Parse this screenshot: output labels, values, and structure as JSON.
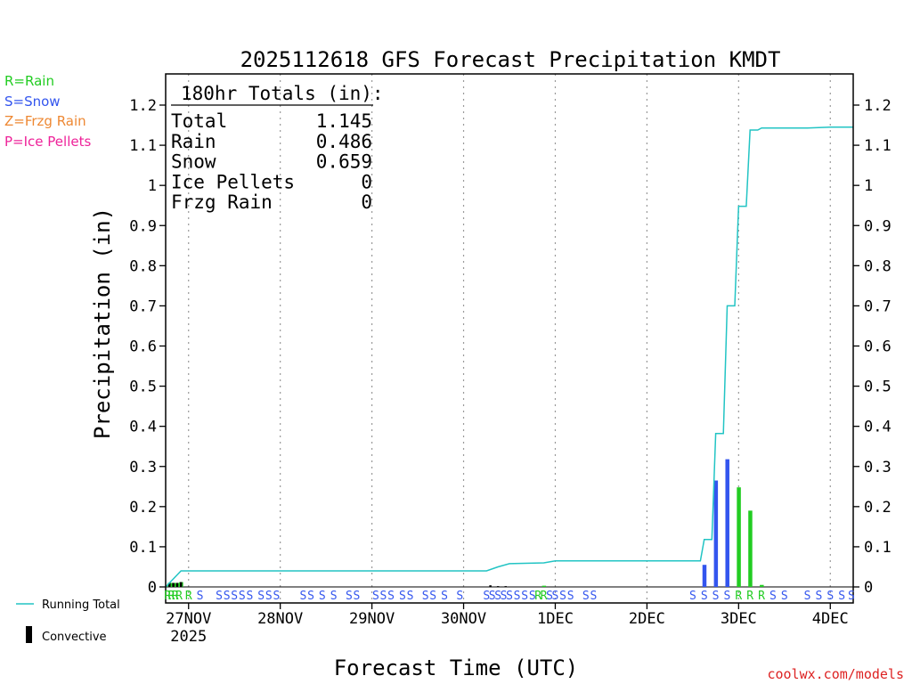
{
  "chart_data": {
    "type": "bar",
    "title": "2025112618 GFS Forecast Precipitation KMDT",
    "xlabel": "Forecast Time (UTC)",
    "ylabel": "Precipitation (in)",
    "ylim": [
      0,
      1.25
    ],
    "y_ticks": [
      0,
      0.1,
      0.2,
      0.3,
      0.4,
      0.5,
      0.6,
      0.7,
      0.8,
      0.9,
      1,
      1.1,
      1.2
    ],
    "y_tick_labels": [
      "0",
      "0.1",
      "0.2",
      "0.3",
      "0.4",
      "0.5",
      "0.6",
      "0.7",
      "0.8",
      "0.9",
      "1",
      "1.1",
      "1.2"
    ],
    "x_unit": "forecast hour",
    "xlim": [
      0,
      180
    ],
    "x_ticks": [
      {
        "hour": 6,
        "label": "27NOV",
        "sublabel": "2025"
      },
      {
        "hour": 30,
        "label": "28NOV"
      },
      {
        "hour": 54,
        "label": "29NOV"
      },
      {
        "hour": 78,
        "label": "30NOV"
      },
      {
        "hour": 102,
        "label": "1DEC"
      },
      {
        "hour": 126,
        "label": "2DEC"
      },
      {
        "hour": 150,
        "label": "3DEC"
      },
      {
        "hour": 174,
        "label": "4DEC"
      }
    ],
    "grid": true,
    "type_legend": [
      {
        "code": "R",
        "label": "R=Rain",
        "color": "#22cc22"
      },
      {
        "code": "S",
        "label": "S=Snow",
        "color": "#3355ee"
      },
      {
        "code": "Z",
        "label": "Z=Frzg Rain",
        "color": "#ee8833"
      },
      {
        "code": "P",
        "label": "P=Ice Pellets",
        "color": "#ee2299"
      }
    ],
    "series_legend": [
      {
        "label": "Running Total",
        "color": "#22c4c4"
      },
      {
        "label": "Convective",
        "color": "#000000"
      }
    ],
    "totals_box": {
      "header": "180hr Totals (in):",
      "rows": [
        {
          "label": "Total",
          "value": "1.145"
        },
        {
          "label": "Rain",
          "value": "0.486"
        },
        {
          "label": "Snow",
          "value": "0.659"
        },
        {
          "label": "Ice Pellets",
          "value": "0"
        },
        {
          "label": "Frzg Rain",
          "value": "0"
        }
      ]
    },
    "bars": [
      {
        "hour": 1,
        "value": 0.01,
        "type": "R"
      },
      {
        "hour": 2,
        "value": 0.01,
        "type": "R"
      },
      {
        "hour": 3,
        "value": 0.01,
        "type": "R"
      },
      {
        "hour": 4,
        "value": 0.012,
        "type": "R"
      },
      {
        "hour": 99,
        "value": 0.003,
        "type": "R"
      },
      {
        "hour": 141,
        "value": 0.055,
        "type": "S"
      },
      {
        "hour": 144,
        "value": 0.265,
        "type": "S"
      },
      {
        "hour": 147,
        "value": 0.318,
        "type": "S"
      },
      {
        "hour": 150,
        "value": 0.248,
        "type": "R"
      },
      {
        "hour": 153,
        "value": 0.19,
        "type": "R"
      },
      {
        "hour": 156,
        "value": 0.005,
        "type": "R"
      }
    ],
    "convective": [
      {
        "hour": 1,
        "value": 0.01
      },
      {
        "hour": 2,
        "value": 0.01
      },
      {
        "hour": 3,
        "value": 0.01
      },
      {
        "hour": 4,
        "value": 0.012
      },
      {
        "hour": 85,
        "value": 0.004
      },
      {
        "hour": 87,
        "value": 0.002
      },
      {
        "hour": 89,
        "value": 0.002
      }
    ],
    "running_total": [
      [
        0,
        0
      ],
      [
        1,
        0.01
      ],
      [
        2,
        0.02
      ],
      [
        3,
        0.03
      ],
      [
        4,
        0.04
      ],
      [
        6,
        0.04
      ],
      [
        84,
        0.04
      ],
      [
        87,
        0.05
      ],
      [
        90,
        0.058
      ],
      [
        99,
        0.06
      ],
      [
        102,
        0.065
      ],
      [
        140,
        0.065
      ],
      [
        141,
        0.118
      ],
      [
        143,
        0.118
      ],
      [
        144,
        0.382
      ],
      [
        146,
        0.382
      ],
      [
        147,
        0.7
      ],
      [
        149,
        0.7
      ],
      [
        150,
        0.948
      ],
      [
        152,
        0.948
      ],
      [
        153,
        1.138
      ],
      [
        155,
        1.138
      ],
      [
        156,
        1.143
      ],
      [
        168,
        1.143
      ],
      [
        174,
        1.145
      ],
      [
        180,
        1.145
      ]
    ],
    "type_strip": [
      {
        "hour": 0.5,
        "type": "R"
      },
      {
        "hour": 1.5,
        "type": "R"
      },
      {
        "hour": 2.5,
        "type": "R"
      },
      {
        "hour": 3.5,
        "type": "R"
      },
      {
        "hour": 6,
        "type": "R"
      },
      {
        "hour": 9,
        "type": "S"
      },
      {
        "hour": 14,
        "type": "S"
      },
      {
        "hour": 16,
        "type": "S"
      },
      {
        "hour": 18,
        "type": "S"
      },
      {
        "hour": 20,
        "type": "S"
      },
      {
        "hour": 22,
        "type": "S"
      },
      {
        "hour": 25,
        "type": "S"
      },
      {
        "hour": 27,
        "type": "S"
      },
      {
        "hour": 29,
        "type": "S"
      },
      {
        "hour": 36,
        "type": "S"
      },
      {
        "hour": 38,
        "type": "S"
      },
      {
        "hour": 41,
        "type": "S"
      },
      {
        "hour": 44,
        "type": "S"
      },
      {
        "hour": 48,
        "type": "S"
      },
      {
        "hour": 50,
        "type": "S"
      },
      {
        "hour": 55,
        "type": "S"
      },
      {
        "hour": 57,
        "type": "S"
      },
      {
        "hour": 59,
        "type": "S"
      },
      {
        "hour": 62,
        "type": "S"
      },
      {
        "hour": 64,
        "type": "S"
      },
      {
        "hour": 68,
        "type": "S"
      },
      {
        "hour": 70,
        "type": "S"
      },
      {
        "hour": 73,
        "type": "S"
      },
      {
        "hour": 77,
        "type": "S"
      },
      {
        "hour": 84,
        "type": "S"
      },
      {
        "hour": 85.5,
        "type": "S"
      },
      {
        "hour": 87,
        "type": "S"
      },
      {
        "hour": 88.5,
        "type": "S"
      },
      {
        "hour": 90,
        "type": "S"
      },
      {
        "hour": 92,
        "type": "S"
      },
      {
        "hour": 94,
        "type": "S"
      },
      {
        "hour": 96,
        "type": "S"
      },
      {
        "hour": 97.5,
        "type": "R"
      },
      {
        "hour": 99,
        "type": "R"
      },
      {
        "hour": 100.5,
        "type": "S"
      },
      {
        "hour": 102,
        "type": "S"
      },
      {
        "hour": 104,
        "type": "S"
      },
      {
        "hour": 106,
        "type": "S"
      },
      {
        "hour": 110,
        "type": "S"
      },
      {
        "hour": 112,
        "type": "S"
      },
      {
        "hour": 138,
        "type": "S"
      },
      {
        "hour": 141,
        "type": "S"
      },
      {
        "hour": 144,
        "type": "S"
      },
      {
        "hour": 147,
        "type": "S"
      },
      {
        "hour": 150,
        "type": "R"
      },
      {
        "hour": 153,
        "type": "R"
      },
      {
        "hour": 156,
        "type": "R"
      },
      {
        "hour": 159,
        "type": "S"
      },
      {
        "hour": 162,
        "type": "S"
      },
      {
        "hour": 168,
        "type": "S"
      },
      {
        "hour": 171,
        "type": "S"
      },
      {
        "hour": 174,
        "type": "S"
      },
      {
        "hour": 177,
        "type": "S"
      },
      {
        "hour": 179.5,
        "type": "S"
      }
    ],
    "watermark": "coolwx.com/models"
  }
}
